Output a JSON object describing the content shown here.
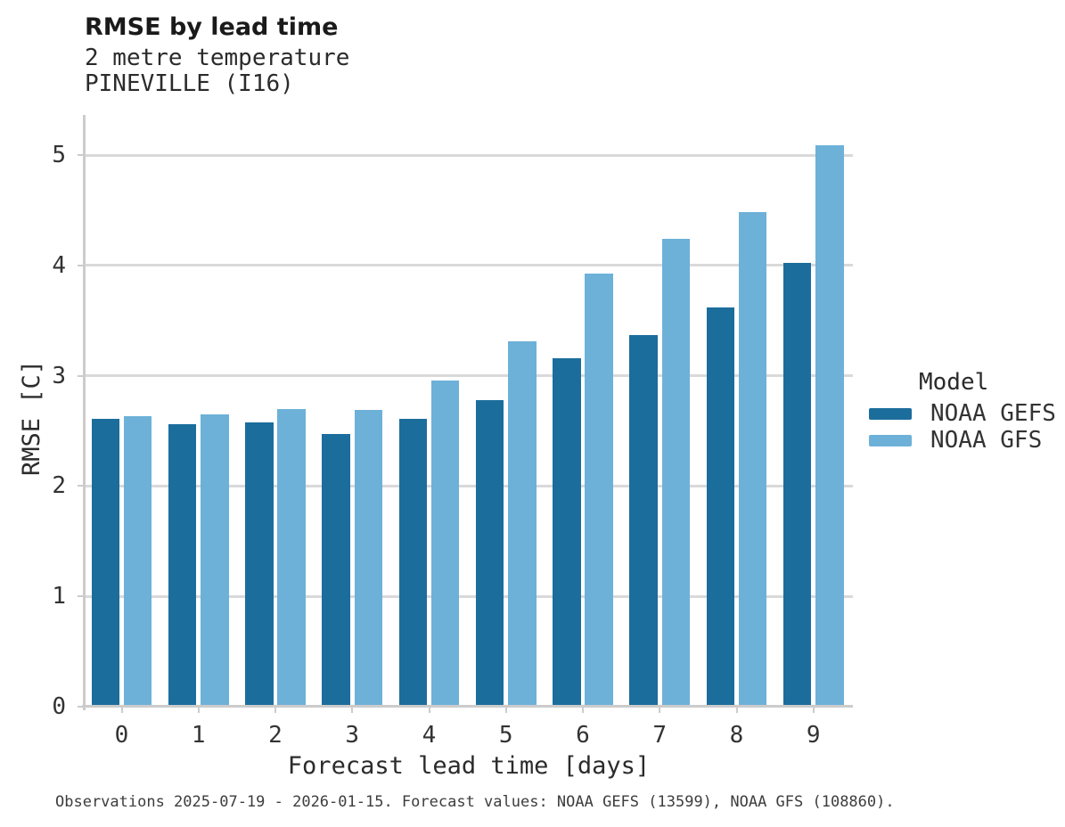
{
  "chart_data": {
    "type": "bar",
    "title": "RMSE by lead time",
    "subtitle": [
      "2 metre temperature",
      "PINEVILLE (I16)"
    ],
    "xlabel": "Forecast lead time [days]",
    "ylabel": "RMSE [C]",
    "categories": [
      "0",
      "1",
      "2",
      "3",
      "4",
      "5",
      "6",
      "7",
      "8",
      "9"
    ],
    "series": [
      {
        "name": "NOAA GEFS",
        "color": "#1b6d9c",
        "values": [
          2.61,
          2.56,
          2.58,
          2.47,
          2.61,
          2.78,
          3.16,
          3.37,
          3.62,
          4.02
        ]
      },
      {
        "name": "NOAA GFS",
        "color": "#6db1d8",
        "values": [
          2.63,
          2.65,
          2.7,
          2.69,
          2.96,
          3.31,
          3.93,
          4.24,
          4.48,
          5.09
        ]
      }
    ],
    "yticks": [
      0,
      1,
      2,
      3,
      4,
      5
    ],
    "ylim": [
      0,
      5.36
    ],
    "grid": "horizontal",
    "legend": {
      "title": "Model",
      "position": "right"
    },
    "caption": "Observations 2025-07-19 - 2026-01-15. Forecast values: NOAA GEFS (13599), NOAA GFS (108860)."
  }
}
